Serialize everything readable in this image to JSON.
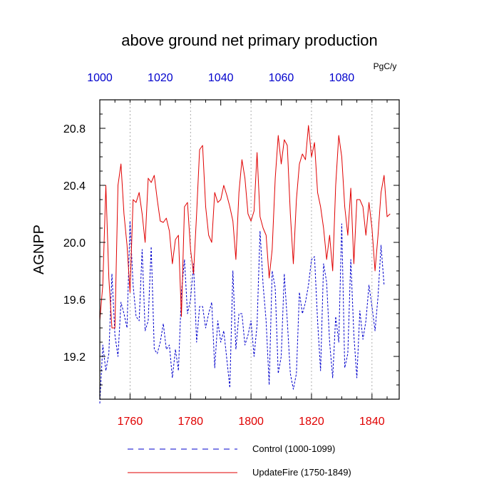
{
  "chart_data": {
    "type": "line",
    "title": "above ground net primary production",
    "units": "PgC/y",
    "ylabel": "AGNPP",
    "xlabel": "",
    "ylim": [
      18.9,
      21.0
    ],
    "yticks": [
      19.2,
      19.6,
      20.0,
      20.4,
      20.8
    ],
    "yticks_labels": [
      "19.2",
      "19.6",
      "20.0",
      "20.4",
      "20.8"
    ],
    "grid": "vertical dotted at major bottom ticks",
    "x_bottom": {
      "range": [
        1750,
        1849
      ],
      "ticks": [
        1760,
        1780,
        1800,
        1820,
        1840
      ],
      "labels": [
        "1760",
        "1780",
        "1800",
        "1820",
        "1840"
      ],
      "color": "#e00000"
    },
    "x_top": {
      "range": [
        1000,
        1099
      ],
      "ticks": [
        1000,
        1020,
        1040,
        1060,
        1080
      ],
      "labels": [
        "1000",
        "1020",
        "1040",
        "1060",
        "1080"
      ],
      "color": "#0000cc"
    },
    "legend_position": "bottom",
    "series": [
      {
        "name": "Control (1000-1099)",
        "color": "#0000cc",
        "style": "dashed",
        "x_start": 1750,
        "values": [
          18.87,
          19.28,
          19.1,
          19.22,
          19.78,
          19.35,
          19.2,
          19.58,
          19.5,
          19.4,
          20.15,
          19.7,
          19.48,
          19.45,
          19.95,
          19.38,
          19.45,
          19.97,
          19.25,
          19.22,
          19.3,
          19.43,
          19.25,
          19.28,
          19.05,
          19.25,
          19.1,
          19.65,
          19.88,
          19.5,
          19.6,
          19.85,
          19.3,
          19.55,
          19.55,
          19.4,
          19.5,
          19.58,
          19.12,
          19.45,
          19.3,
          19.38,
          19.18,
          18.98,
          19.8,
          19.25,
          19.5,
          19.5,
          19.28,
          19.35,
          19.45,
          19.2,
          19.42,
          20.08,
          19.7,
          19.45,
          19.0,
          19.8,
          19.68,
          19.08,
          19.2,
          19.78,
          19.45,
          19.08,
          18.97,
          19.08,
          19.65,
          19.5,
          19.58,
          19.7,
          19.88,
          19.9,
          19.45,
          19.1,
          19.85,
          19.72,
          19.3,
          19.05,
          19.48,
          19.3,
          20.13,
          19.12,
          19.22,
          19.88,
          19.35,
          19.05,
          19.52,
          19.32,
          19.45,
          19.7,
          19.55,
          19.38,
          19.62,
          19.98,
          19.7
        ],
        "note_values": "one value per year from x_start"
      },
      {
        "name": "UpdateFire (1750-1849)",
        "color": "#e00000",
        "style": "solid",
        "x_start": 1750,
        "values": [
          19.45,
          19.7,
          20.4,
          19.75,
          19.4,
          19.4,
          20.4,
          20.55,
          20.2,
          19.98,
          19.65,
          20.3,
          20.28,
          20.35,
          20.2,
          20.0,
          20.45,
          20.42,
          20.47,
          20.3,
          20.15,
          20.14,
          20.17,
          20.08,
          19.85,
          20.02,
          20.05,
          19.48,
          20.25,
          20.28,
          19.95,
          19.78,
          20.2,
          20.65,
          20.68,
          20.25,
          20.05,
          20.0,
          20.35,
          20.28,
          20.3,
          20.4,
          20.33,
          20.25,
          20.15,
          19.88,
          20.35,
          20.58,
          20.45,
          20.2,
          20.15,
          20.22,
          20.63,
          20.18,
          20.1,
          20.05,
          19.75,
          19.95,
          20.45,
          20.75,
          20.55,
          20.72,
          20.68,
          20.2,
          19.85,
          20.3,
          20.55,
          20.62,
          20.58,
          20.82,
          20.6,
          20.7,
          20.35,
          20.25,
          20.1,
          19.88,
          20.05,
          19.8,
          20.4,
          20.75,
          20.6,
          20.25,
          20.05,
          20.38,
          19.85,
          20.3,
          20.3,
          20.25,
          20.05,
          20.28,
          20.1,
          19.8,
          20.05,
          20.35,
          20.47,
          20.18,
          20.2
        ],
        "note_values": "one value per year from x_start"
      }
    ]
  }
}
